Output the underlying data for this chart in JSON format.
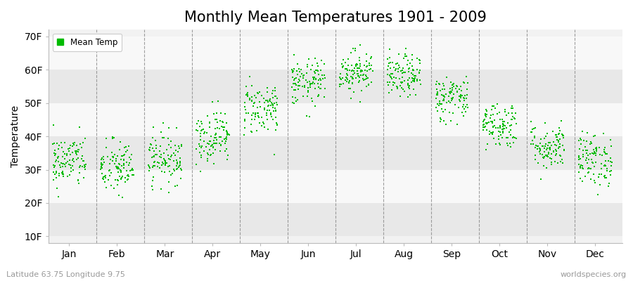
{
  "title": "Monthly Mean Temperatures 1901 - 2009",
  "ylabel": "Temperature",
  "xlabel_labels": [
    "Jan",
    "Feb",
    "Mar",
    "Apr",
    "May",
    "Jun",
    "Jul",
    "Aug",
    "Sep",
    "Oct",
    "Nov",
    "Dec"
  ],
  "yticks": [
    10,
    20,
    30,
    40,
    50,
    60,
    70
  ],
  "ytick_labels": [
    "10F",
    "20F",
    "30F",
    "40F",
    "50F",
    "60F",
    "70F"
  ],
  "ylim": [
    8,
    72
  ],
  "xlim": [
    0,
    12
  ],
  "dot_color": "#00bb00",
  "bg_color": "#f2f2f2",
  "stripe_light": "#f8f8f8",
  "stripe_dark": "#e8e8e8",
  "legend_label": "Mean Temp",
  "subtitle_left": "Latitude 63.75 Longitude 9.75",
  "subtitle_right": "worldspecies.org",
  "title_fontsize": 15,
  "axis_fontsize": 10,
  "monthly_means": [
    32.5,
    30.5,
    33.5,
    40.0,
    48.5,
    56.0,
    59.5,
    58.0,
    51.5,
    43.5,
    37.0,
    33.0
  ],
  "monthly_stds": [
    4.0,
    4.2,
    3.8,
    4.0,
    4.0,
    3.5,
    3.2,
    3.2,
    3.5,
    3.5,
    3.5,
    4.0
  ],
  "n_years": 109,
  "seed": 42
}
